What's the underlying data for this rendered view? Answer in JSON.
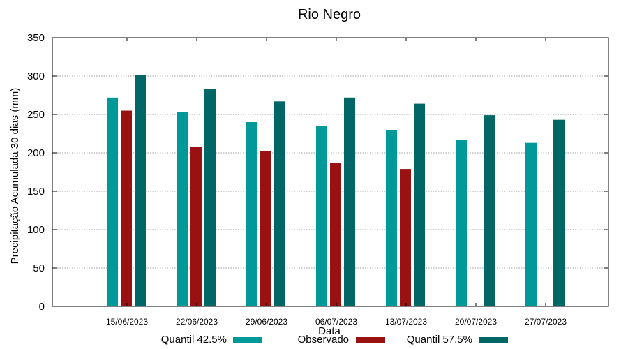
{
  "chart_data": {
    "type": "bar",
    "title": "Rio Negro",
    "xlabel": "Data",
    "ylabel": "Precipitação Acumulada 30 dias (mm)",
    "ylim": [
      0,
      350
    ],
    "yticks": [
      0,
      50,
      100,
      150,
      200,
      250,
      300,
      350
    ],
    "grid": true,
    "legend_position": "bottom",
    "categories": [
      "15/06/2023",
      "22/06/2023",
      "29/06/2023",
      "06/07/2023",
      "13/07/2023",
      "20/07/2023",
      "27/07/2023"
    ],
    "series": [
      {
        "name": "Quantil 42.5%",
        "color": "#009999",
        "values": [
          272,
          253,
          240,
          235,
          230,
          217,
          213
        ]
      },
      {
        "name": "Observado",
        "color": "#991111",
        "values": [
          255,
          208,
          202,
          187,
          179,
          null,
          null
        ]
      },
      {
        "name": "Quantil 57.5%",
        "color": "#006666",
        "values": [
          301,
          283,
          267,
          272,
          264,
          249,
          243
        ]
      }
    ]
  }
}
